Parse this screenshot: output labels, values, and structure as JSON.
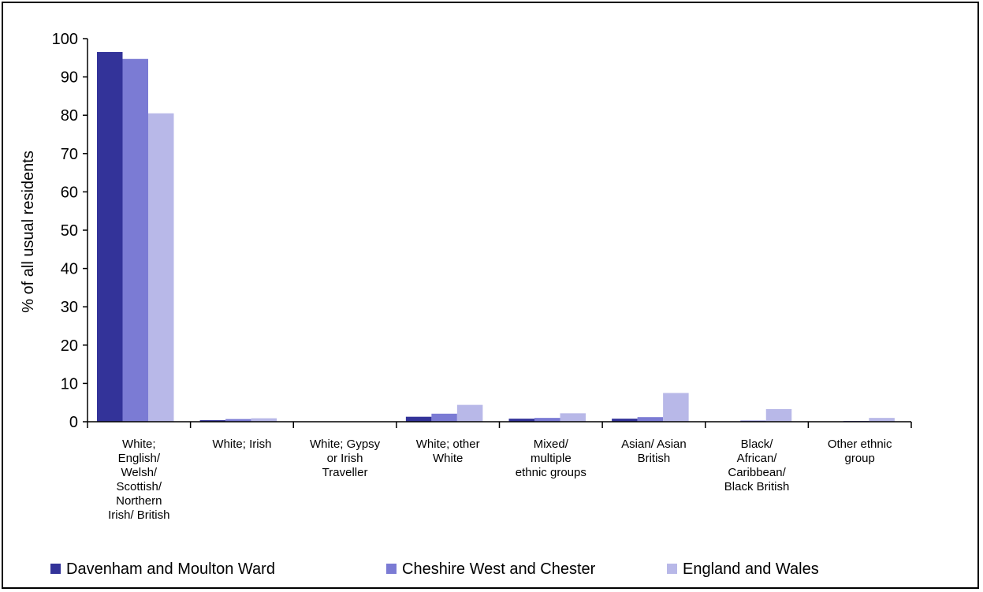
{
  "chart_data": {
    "type": "bar",
    "title": "",
    "xlabel": "",
    "ylabel": "% of all usual residents",
    "ylim": [
      0,
      100
    ],
    "yticks": [
      0,
      10,
      20,
      30,
      40,
      50,
      60,
      70,
      80,
      90,
      100
    ],
    "categories": [
      "White; English/ Welsh/ Scottish/ Northern Irish/ British",
      "White; Irish",
      "White; Gypsy or Irish Traveller",
      "White; other White",
      "Mixed/ multiple ethnic groups",
      "Asian/ Asian British",
      "Black/ African/ Caribbean/ Black British",
      "Other ethnic group"
    ],
    "category_lines": [
      [
        "White;",
        "English/",
        "Welsh/",
        "Scottish/",
        "Northern",
        "Irish/ British"
      ],
      [
        "White; Irish"
      ],
      [
        "White; Gypsy",
        "or Irish",
        "Traveller"
      ],
      [
        "White; other",
        "White"
      ],
      [
        "Mixed/",
        "multiple",
        "ethnic groups"
      ],
      [
        "Asian/ Asian",
        "British"
      ],
      [
        "Black/",
        "African/",
        "Caribbean/",
        "Black British"
      ],
      [
        "Other ethnic",
        "group"
      ]
    ],
    "series": [
      {
        "name": "Davenham and Moulton Ward",
        "color": "#333399",
        "values": [
          96.5,
          0.4,
          0.0,
          1.3,
          0.8,
          0.8,
          0.1,
          0.1
        ]
      },
      {
        "name": "Cheshire West and Chester",
        "color": "#7b7bd4",
        "values": [
          94.7,
          0.7,
          0.1,
          2.1,
          1.0,
          1.2,
          0.3,
          0.2
        ]
      },
      {
        "name": "England and Wales",
        "color": "#b8b8e8",
        "values": [
          80.5,
          0.9,
          0.1,
          4.4,
          2.2,
          7.5,
          3.3,
          1.0
        ]
      }
    ],
    "grid": false,
    "legend_position": "bottom"
  }
}
